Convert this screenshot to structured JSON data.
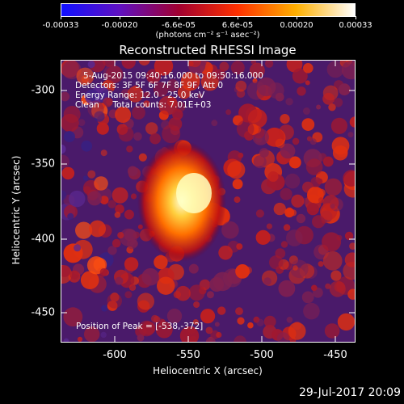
{
  "colorbar": {
    "labels": [
      "-0.00033",
      "-0.00020",
      "-6.6e-05",
      "6.6e-05",
      "0.00020",
      "0.00033"
    ],
    "units": "(photons cm⁻² s⁻¹ asec⁻²)",
    "colors": [
      "#1010ff",
      "#6010c0",
      "#a00030",
      "#ff3000",
      "#ffb000",
      "#ffffff"
    ]
  },
  "title": "Reconstructed RHESSI Image",
  "info": {
    "line1": "5-Aug-2015 09:40:16.000 to 09:50:16.000",
    "line2": "Detectors: 3F 5F 6F 7F 8F 9F, Att 0",
    "line3": "Energy Range: 12.0 - 25.0 keV",
    "line4": "Clean     Total counts: 7.01E+03"
  },
  "peak_label": "Position of Peak = [-538,-372]",
  "axes": {
    "xlabel": "Heliocentric X (arcsec)",
    "ylabel": "Heliocentric Y (arcsec)",
    "xticks": [
      "-600",
      "-550",
      "-500",
      "-450"
    ],
    "yticks": [
      "-300",
      "-350",
      "-400",
      "-450"
    ]
  },
  "timestamp": "29-Jul-2017 20:09"
}
